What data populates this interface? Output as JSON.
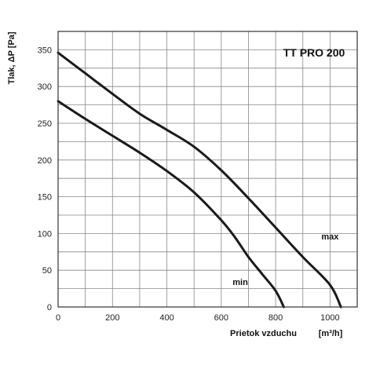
{
  "chart_data": {
    "type": "line",
    "title": "TT PRO 200",
    "xlabel": "Prietok vzduchu",
    "xlabel_unit": "[m³/h]",
    "ylabel": "Tlak, ΔP [Pa]",
    "xlim": [
      0,
      1100
    ],
    "ylim": [
      0,
      375
    ],
    "x_ticks": [
      0,
      200,
      400,
      600,
      800,
      1000
    ],
    "y_ticks": [
      0,
      50,
      100,
      150,
      200,
      250,
      300,
      350
    ],
    "x_minor_step": 100,
    "y_minor_step": 25,
    "grid": true,
    "series": [
      {
        "name": "max",
        "x": [
          0,
          100,
          200,
          300,
          400,
          500,
          600,
          700,
          800,
          900,
          1000,
          1040
        ],
        "y": [
          346,
          318,
          290,
          263,
          241,
          218,
          186,
          148,
          108,
          68,
          30,
          0
        ]
      },
      {
        "name": "min",
        "x": [
          0,
          100,
          200,
          300,
          400,
          500,
          600,
          650,
          700,
          750,
          800,
          830
        ],
        "y": [
          280,
          256,
          233,
          210,
          185,
          156,
          118,
          95,
          68,
          45,
          22,
          0
        ]
      }
    ],
    "colors": {
      "line": "#1a1a1a",
      "grid": "#888888",
      "frame": "#333333"
    }
  }
}
